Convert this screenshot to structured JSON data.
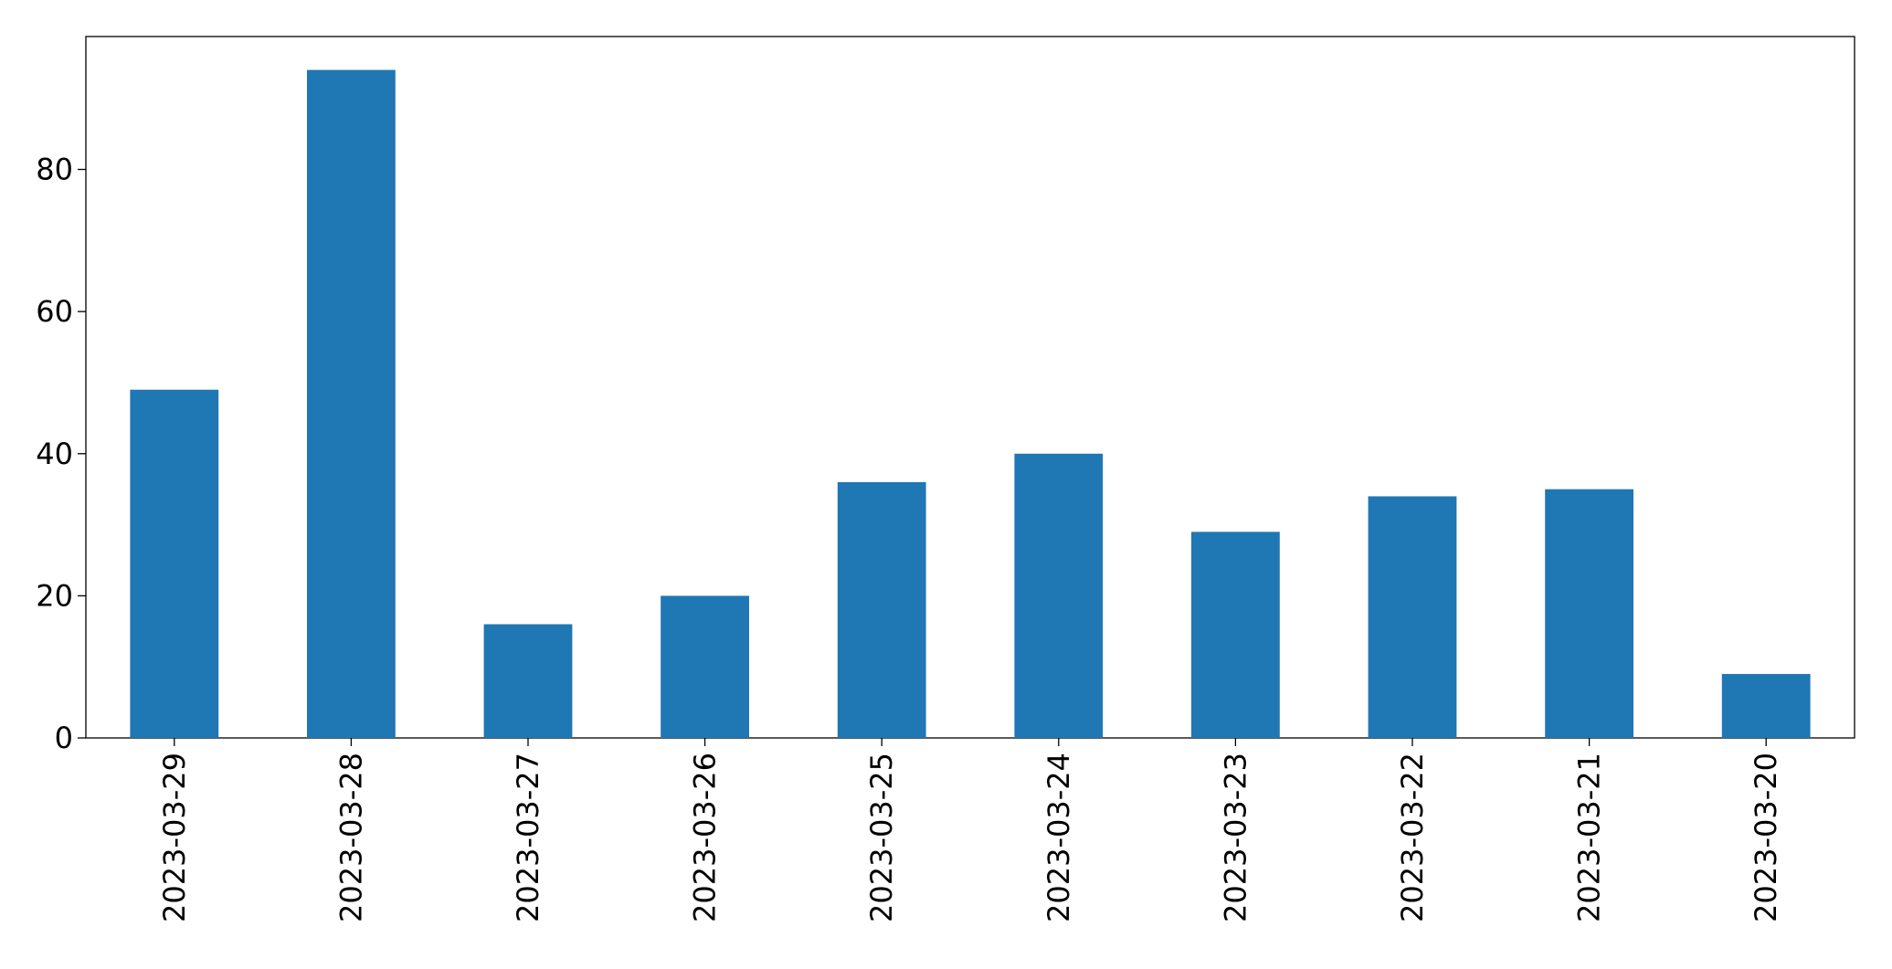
{
  "chart_data": {
    "type": "bar",
    "categories": [
      "2023-03-29",
      "2023-03-28",
      "2023-03-27",
      "2023-03-26",
      "2023-03-25",
      "2023-03-24",
      "2023-03-23",
      "2023-03-22",
      "2023-03-21",
      "2023-03-20"
    ],
    "values": [
      49,
      94,
      16,
      20,
      36,
      40,
      29,
      34,
      35,
      9
    ],
    "color": "#1f77b4",
    "ylim": [
      0,
      98.7
    ],
    "yticks": [
      0,
      20,
      40,
      60,
      80
    ],
    "grid": false
  }
}
